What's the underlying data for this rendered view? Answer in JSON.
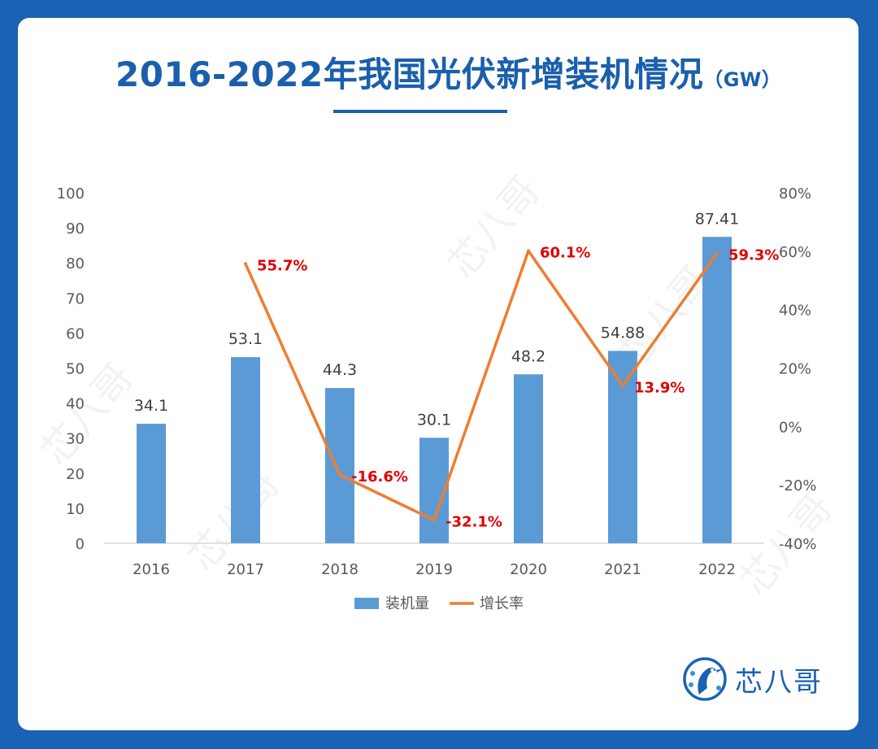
{
  "page": {
    "title": "2016-2022年我国光伏新增装机情况",
    "title_unit": "（GW）",
    "brand": "芯八哥",
    "watermark": "芯八哥"
  },
  "colors": {
    "frame": "#1a62b4",
    "title": "#1a5fab",
    "bar": "#5b9bd5",
    "line": "#ed7d31",
    "line_label": "#e00000"
  },
  "chart_data": {
    "type": "bar",
    "categories": [
      "2016",
      "2017",
      "2018",
      "2019",
      "2020",
      "2021",
      "2022"
    ],
    "series": [
      {
        "name": "装机量",
        "type": "bar",
        "axis": "left",
        "values": [
          34.1,
          53.1,
          44.3,
          30.1,
          48.2,
          54.88,
          87.41
        ],
        "labels": [
          "34.1",
          "53.1",
          "44.3",
          "30.1",
          "48.2",
          "54.88",
          "87.41"
        ]
      },
      {
        "name": "增长率",
        "type": "line",
        "axis": "right",
        "values": [
          null,
          55.7,
          -16.6,
          -32.1,
          60.1,
          13.9,
          59.3
        ],
        "labels": [
          null,
          "55.7%",
          "-16.6%",
          "-32.1%",
          "60.1%",
          "13.9%",
          "59.3%"
        ]
      }
    ],
    "y_left": {
      "min": 0,
      "max": 100,
      "ticks": [
        "0",
        "10",
        "20",
        "30",
        "40",
        "50",
        "60",
        "70",
        "80",
        "90",
        "100"
      ]
    },
    "y_right": {
      "min": -40,
      "max": 80,
      "ticks": [
        "-40%",
        "-20%",
        "0%",
        "20%",
        "40%",
        "60%",
        "80%"
      ]
    },
    "legend": {
      "position": "bottom"
    },
    "grid": false
  }
}
